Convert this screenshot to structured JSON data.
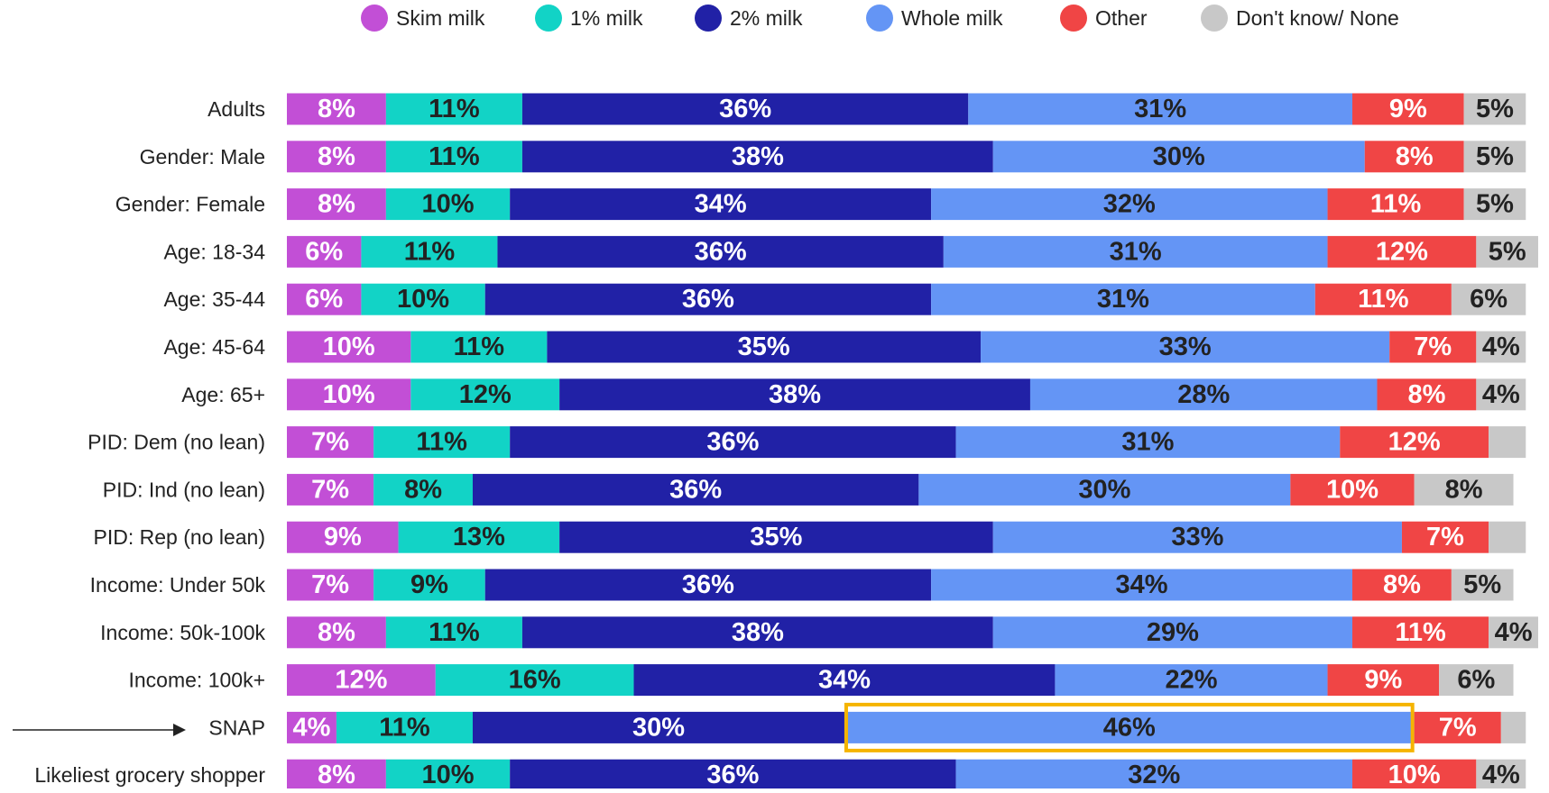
{
  "chart_data": {
    "type": "stacked-bar-horizontal",
    "categories": [
      "Adults",
      "Gender: Male",
      "Gender: Female",
      "Age: 18-34",
      "Age: 35-44",
      "Age: 45-64",
      "Age: 65+",
      "PID: Dem (no lean)",
      "PID: Ind (no lean)",
      "PID: Rep (no lean)",
      "Income: Under 50k",
      "Income: 50k-100k",
      "Income: 100k+",
      "SNAP",
      "Likeliest grocery shopper"
    ],
    "legend": "top",
    "series": [
      {
        "name": "Skim milk",
        "color": "#c24fd6",
        "label_color": "#ffffff",
        "values": [
          8,
          8,
          8,
          6,
          6,
          10,
          10,
          7,
          7,
          9,
          7,
          8,
          12,
          4,
          8
        ],
        "value_labels": [
          "8%",
          "8%",
          "8%",
          "6%",
          "6%",
          "10%",
          "10%",
          "7%",
          "7%",
          "9%",
          "7%",
          "8%",
          "12%",
          "4%",
          "8%"
        ]
      },
      {
        "name": "1% milk",
        "color": "#12d3c6",
        "label_color": "#222222",
        "values": [
          11,
          11,
          10,
          11,
          10,
          11,
          12,
          11,
          8,
          13,
          9,
          11,
          16,
          11,
          10
        ],
        "value_labels": [
          "11%",
          "11%",
          "10%",
          "11%",
          "10%",
          "11%",
          "12%",
          "11%",
          "8%",
          "13%",
          "9%",
          "11%",
          "16%",
          "11%",
          "10%"
        ]
      },
      {
        "name": "2% milk",
        "color": "#2121a6",
        "label_color": "#ffffff",
        "values": [
          36,
          38,
          34,
          36,
          36,
          35,
          38,
          36,
          36,
          35,
          36,
          38,
          34,
          30,
          36
        ],
        "value_labels": [
          "36%",
          "38%",
          "34%",
          "36%",
          "36%",
          "35%",
          "38%",
          "36%",
          "36%",
          "35%",
          "36%",
          "38%",
          "34%",
          "30%",
          "36%"
        ]
      },
      {
        "name": "Whole milk",
        "color": "#6495f5",
        "label_color": "#222222",
        "values": [
          31,
          30,
          32,
          31,
          31,
          33,
          28,
          31,
          30,
          33,
          34,
          29,
          22,
          46,
          32
        ],
        "value_labels": [
          "31%",
          "30%",
          "32%",
          "31%",
          "31%",
          "33%",
          "28%",
          "31%",
          "30%",
          "33%",
          "34%",
          "29%",
          "22%",
          "46%",
          "32%"
        ]
      },
      {
        "name": "Other",
        "color": "#f04545",
        "label_color": "#ffffff",
        "values": [
          9,
          8,
          11,
          12,
          11,
          7,
          8,
          12,
          10,
          7,
          8,
          11,
          9,
          7,
          10
        ],
        "value_labels": [
          "9%",
          "8%",
          "11%",
          "12%",
          "11%",
          "7%",
          "8%",
          "12%",
          "10%",
          "7%",
          "8%",
          "11%",
          "9%",
          "7%",
          "10%"
        ]
      },
      {
        "name": "Don't know/ None",
        "color": "#c8c8c8",
        "label_color": "#222222",
        "values": [
          5,
          5,
          5,
          5,
          6,
          4,
          4,
          3,
          8,
          3,
          5,
          4,
          6,
          2,
          4
        ],
        "value_labels": [
          "5%",
          "5%",
          "5%",
          "5%",
          "6%",
          "4%",
          "4%",
          null,
          "8%",
          null,
          "5%",
          "4%",
          "6%",
          null,
          "4%"
        ]
      }
    ]
  }
}
